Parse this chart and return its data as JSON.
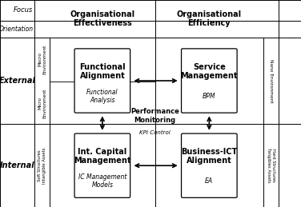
{
  "background_color": "#ffffff",
  "box_color": "#ffffff",
  "col1_header": "Organisational\nEffectiveness",
  "col2_header": "Organisational\nEfficiency",
  "row1_label": "External",
  "row2_label": "Internal",
  "focus_label": "Focus",
  "orientation_label": "Orientation",
  "macro_label": "Macro\nEnvironment",
  "micro_label": "Micro\nEnvironment",
  "soft_label": "Soft Structures\nIntangible Assets",
  "nano_label": "Nano Environment",
  "hard_label": "Hard Structures\nTangibles Assets",
  "box1_title": "Functional\nAlignment",
  "box1_sub": "Functional\nAnalysis",
  "box2_title": "Service\nManagement",
  "box2_sub": "BPM",
  "box3_title": "Int. Capital\nManagement",
  "box3_sub": "IC Management\nModels",
  "box4_title": "Business-ICT\nAlignment",
  "box4_sub": "EA",
  "center_title": "Performance\nMonitoring",
  "center_sub": "KPI Control",
  "grid_color": "#000000"
}
